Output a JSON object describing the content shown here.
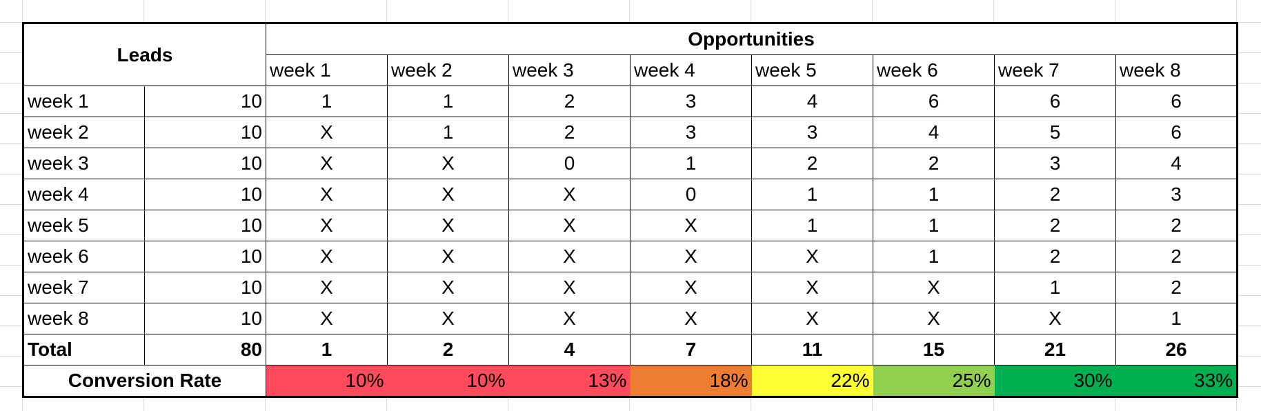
{
  "header": {
    "leads": "Leads",
    "opportunities": "Opportunities",
    "weeks": [
      "week 1",
      "week 2",
      "week 3",
      "week 4",
      "week 5",
      "week 6",
      "week 7",
      "week 8"
    ]
  },
  "rows": [
    {
      "label": "week 1",
      "leads": "10",
      "values": [
        "1",
        "1",
        "2",
        "3",
        "4",
        "6",
        "6",
        "6"
      ]
    },
    {
      "label": "week 2",
      "leads": "10",
      "values": [
        "X",
        "1",
        "2",
        "3",
        "3",
        "4",
        "5",
        "6"
      ]
    },
    {
      "label": "week 3",
      "leads": "10",
      "values": [
        "X",
        "X",
        "0",
        "1",
        "2",
        "2",
        "3",
        "4"
      ]
    },
    {
      "label": "week 4",
      "leads": "10",
      "values": [
        "X",
        "X",
        "X",
        "0",
        "1",
        "1",
        "2",
        "3"
      ]
    },
    {
      "label": "week 5",
      "leads": "10",
      "values": [
        "X",
        "X",
        "X",
        "X",
        "1",
        "1",
        "2",
        "2"
      ]
    },
    {
      "label": "week 6",
      "leads": "10",
      "values": [
        "X",
        "X",
        "X",
        "X",
        "X",
        "1",
        "2",
        "2"
      ]
    },
    {
      "label": "week 7",
      "leads": "10",
      "values": [
        "X",
        "X",
        "X",
        "X",
        "X",
        "X",
        "1",
        "2"
      ]
    },
    {
      "label": "week 8",
      "leads": "10",
      "values": [
        "X",
        "X",
        "X",
        "X",
        "X",
        "X",
        "X",
        "1"
      ]
    }
  ],
  "total": {
    "label": "Total",
    "leads": "80",
    "values": [
      "1",
      "2",
      "4",
      "7",
      "11",
      "15",
      "21",
      "26"
    ]
  },
  "conversion": {
    "label": "Conversion Rate",
    "values": [
      "10%",
      "10%",
      "13%",
      "18%",
      "22%",
      "25%",
      "30%",
      "33%"
    ],
    "colors": [
      "#ff4b5c",
      "#ff4b5c",
      "#ff4b5c",
      "#ed7d31",
      "#ffff33",
      "#92d050",
      "#00b050",
      "#00b050"
    ]
  }
}
